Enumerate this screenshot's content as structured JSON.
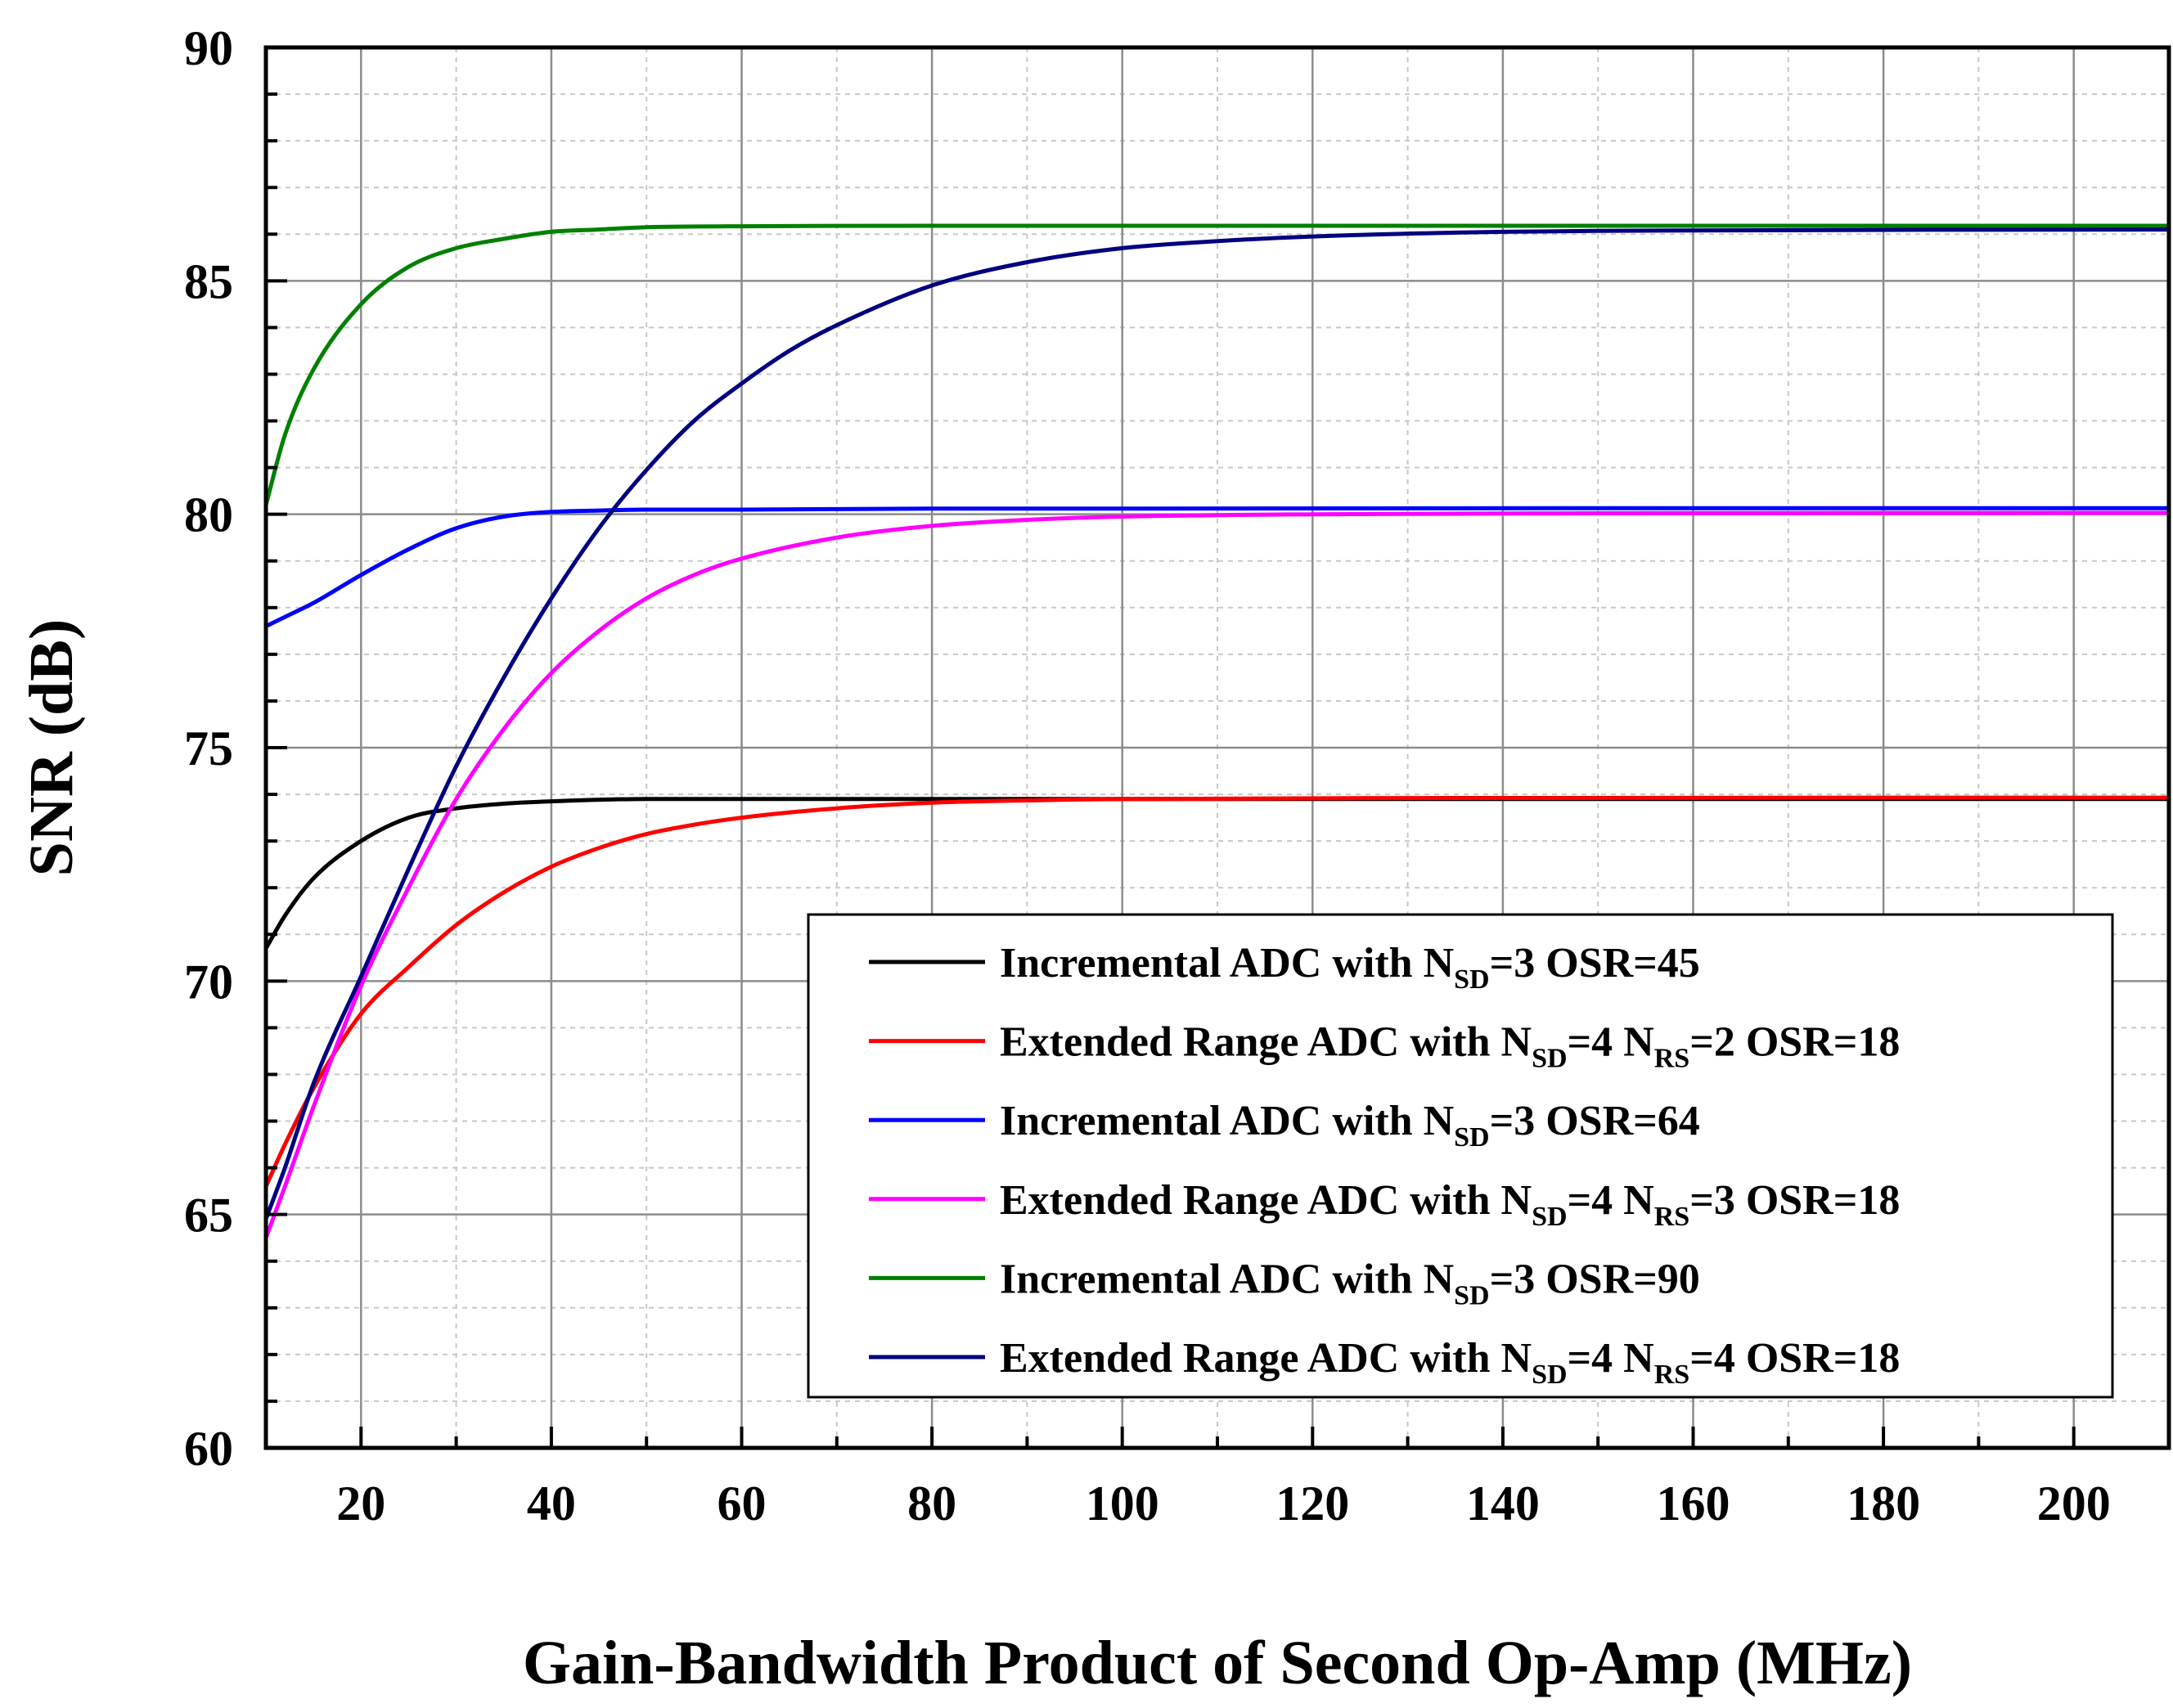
{
  "chart_data": {
    "type": "line",
    "xlabel": "Gain-Bandwidth Product of Second Op-Amp (MHz)",
    "ylabel": "SNR (dB)",
    "xlim": [
      10,
      210
    ],
    "ylim": [
      60,
      90
    ],
    "x_ticks": [
      20,
      40,
      60,
      80,
      100,
      120,
      140,
      160,
      180,
      200
    ],
    "y_ticks": [
      60,
      65,
      70,
      75,
      80,
      85,
      90
    ],
    "grid": true,
    "legend_position": "lower-right",
    "series": [
      {
        "name": "Incremental ADC with NSD=3 OSR=45",
        "legend": {
          "pre": "Incremental ADC with N",
          "sub1": "SD",
          "mid": "=3 OSR=45",
          "sub2": "",
          "post": ""
        },
        "color": "#000000",
        "x": [
          10,
          12,
          15,
          20,
          25,
          30,
          35,
          40,
          50,
          60,
          80,
          100,
          150,
          210
        ],
        "y": [
          70.7,
          71.4,
          72.2,
          73.0,
          73.5,
          73.7,
          73.8,
          73.85,
          73.9,
          73.9,
          73.9,
          73.9,
          73.9,
          73.9
        ]
      },
      {
        "name": "Extended Range ADC with NSD=4 NRS=2 OSR=18",
        "legend": {
          "pre": "Extended Range ADC with N",
          "sub1": "SD",
          "mid": "=4 N",
          "sub2": "RS",
          "post": "=2 OSR=18"
        },
        "color": "#ff0000",
        "x": [
          10,
          12,
          15,
          20,
          25,
          30,
          35,
          40,
          45,
          50,
          55,
          60,
          70,
          80,
          90,
          100,
          130,
          210
        ],
        "y": [
          65.6,
          66.5,
          67.7,
          69.3,
          70.3,
          71.2,
          71.9,
          72.45,
          72.85,
          73.15,
          73.35,
          73.5,
          73.7,
          73.82,
          73.87,
          73.9,
          73.92,
          73.93
        ]
      },
      {
        "name": "Incremental ADC with NSD=3 OSR=64",
        "legend": {
          "pre": "Incremental ADC with N",
          "sub1": "SD",
          "mid": "=3 OSR=64",
          "sub2": "",
          "post": ""
        },
        "color": "#0000ff",
        "x": [
          10,
          12,
          15,
          20,
          25,
          30,
          35,
          40,
          45,
          50,
          60,
          80,
          100,
          150,
          210
        ],
        "y": [
          77.6,
          77.8,
          78.1,
          78.7,
          79.25,
          79.7,
          79.95,
          80.05,
          80.08,
          80.1,
          80.1,
          80.12,
          80.12,
          80.13,
          80.13
        ]
      },
      {
        "name": "Extended Range ADC with NSD=4 NRS=3 OSR=18",
        "legend": {
          "pre": "Extended Range ADC with N",
          "sub1": "SD",
          "mid": "=4 N",
          "sub2": "RS",
          "post": "=3 OSR=18"
        },
        "color": "#ff00ff",
        "x": [
          10,
          12,
          15,
          20,
          25,
          30,
          35,
          40,
          45,
          50,
          55,
          60,
          70,
          80,
          90,
          100,
          120,
          150,
          210
        ],
        "y": [
          64.5,
          65.6,
          67.3,
          69.9,
          72.0,
          73.9,
          75.4,
          76.6,
          77.5,
          78.2,
          78.7,
          79.05,
          79.5,
          79.75,
          79.88,
          79.95,
          80.0,
          80.02,
          80.03
        ]
      },
      {
        "name": "Incremental ADC with NSD=3 OSR=90",
        "legend": {
          "pre": "Incremental ADC with N",
          "sub1": "SD",
          "mid": "=3 OSR=90",
          "sub2": "",
          "post": ""
        },
        "color": "#008000",
        "x": [
          10,
          12,
          15,
          20,
          25,
          30,
          35,
          40,
          45,
          50,
          60,
          80,
          100,
          150,
          210
        ],
        "y": [
          80.2,
          81.7,
          83.1,
          84.5,
          85.3,
          85.7,
          85.9,
          86.05,
          86.1,
          86.15,
          86.17,
          86.18,
          86.18,
          86.18,
          86.18
        ]
      },
      {
        "name": "Extended Range ADC with NSD=4 NRS=4 OSR=18",
        "legend": {
          "pre": "Extended Range ADC with N",
          "sub1": "SD",
          "mid": "=4 N",
          "sub2": "RS",
          "post": "=4 OSR=18"
        },
        "color": "#000080",
        "x": [
          10,
          12,
          15,
          20,
          25,
          30,
          35,
          40,
          45,
          50,
          55,
          60,
          65,
          70,
          80,
          90,
          100,
          110,
          120,
          140,
          160,
          210
        ],
        "y": [
          64.9,
          66.0,
          67.8,
          70.1,
          72.4,
          74.6,
          76.5,
          78.2,
          79.7,
          80.95,
          82.0,
          82.8,
          83.5,
          84.05,
          84.9,
          85.4,
          85.7,
          85.85,
          85.95,
          86.05,
          86.08,
          86.1
        ]
      }
    ]
  }
}
